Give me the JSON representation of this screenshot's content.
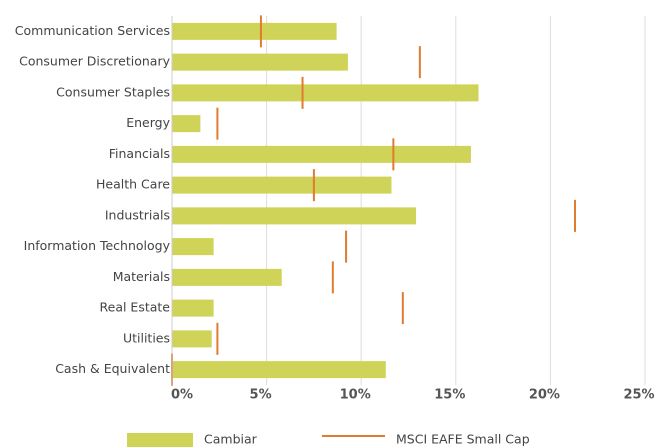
{
  "chart_data": {
    "type": "bar",
    "orientation": "horizontal",
    "categories": [
      "Communication Services",
      "Consumer Discretionary",
      "Consumer Staples",
      "Energy",
      "Financials",
      "Health Care",
      "Industrials",
      "Information Technology",
      "Materials",
      "Real Estate",
      "Utilities",
      "Cash & Equivalent"
    ],
    "series": [
      {
        "name": "Cambiar",
        "color": "#cfd458",
        "mark": "bar",
        "values": [
          8.7,
          9.3,
          16.2,
          1.5,
          15.8,
          11.6,
          12.9,
          2.2,
          5.8,
          2.2,
          2.1,
          11.3
        ]
      },
      {
        "name": "MSCI EAFE Small Cap",
        "color": "#e07b30",
        "mark": "tick",
        "values": [
          4.7,
          13.1,
          6.9,
          2.4,
          11.7,
          7.5,
          21.3,
          9.2,
          8.5,
          12.2,
          2.4,
          0
        ]
      }
    ],
    "xlim": [
      0,
      25
    ],
    "xticks": [
      {
        "value": 0,
        "label": "0%"
      },
      {
        "value": 5,
        "label": "5%"
      },
      {
        "value": 10,
        "label": "10%"
      },
      {
        "value": 15,
        "label": "15%"
      },
      {
        "value": 20,
        "label": "20%"
      },
      {
        "value": 25,
        "label": "25%"
      }
    ],
    "grid": true,
    "legend": "bottom"
  }
}
